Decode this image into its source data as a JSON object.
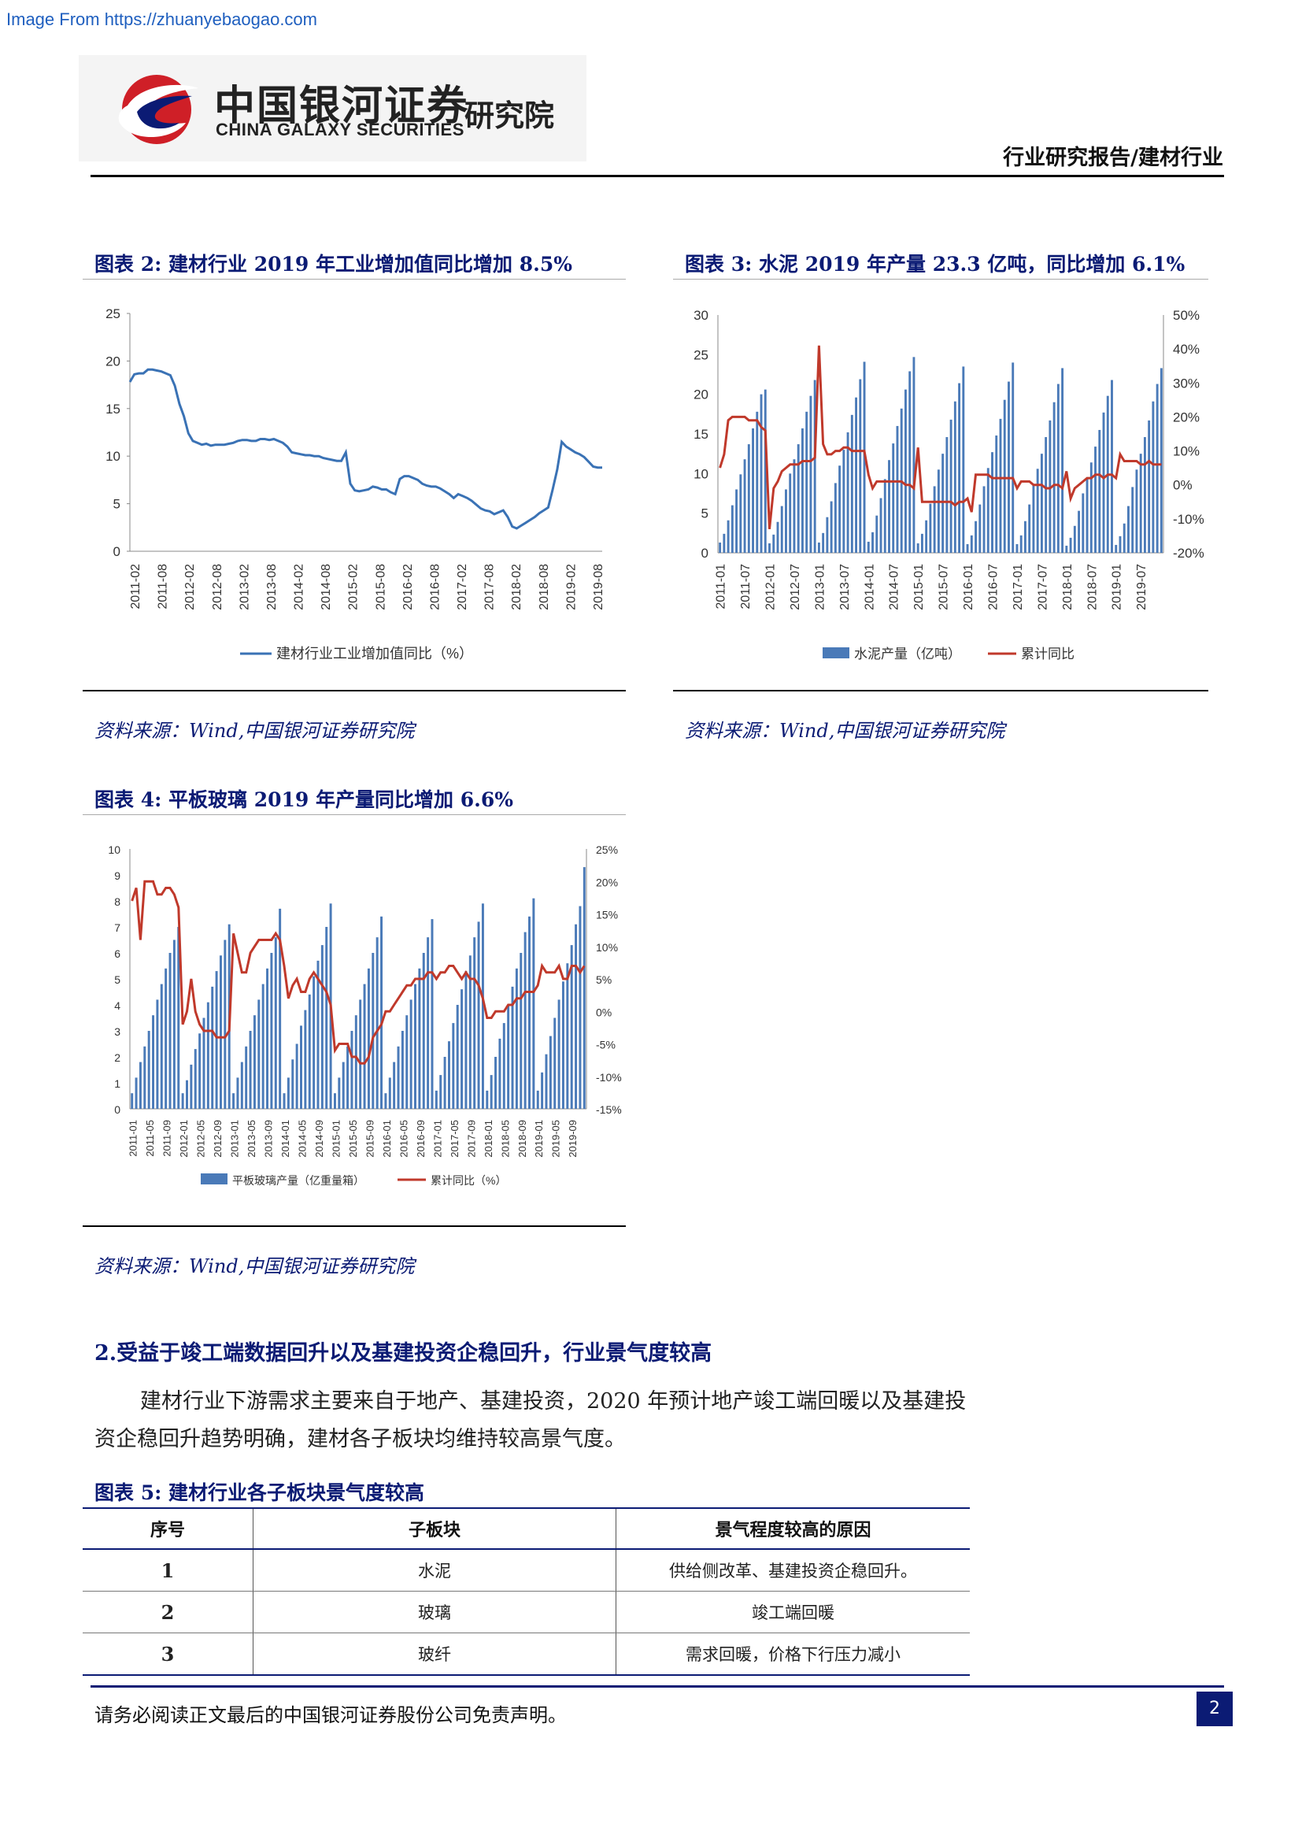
{
  "watermark": "Image From https://zhuanyebaogao.com",
  "header": {
    "brand_cn": "中国银河证券",
    "brand_sub": "研究院",
    "brand_en": "CHINA GALAXY SECURITIES",
    "report_type": "行业研究报告/建材行业"
  },
  "colors": {
    "navy": "#0b1b74",
    "bar_blue": "#4a7ab8",
    "line_red": "#c0392b",
    "line_blue": "#3a72b5"
  },
  "figures": {
    "fig2": {
      "title": "图表 2:  建材行业 2019 年工业增加值同比增加 8.5%",
      "source": "资料来源：Wind,中国银河证券研究院"
    },
    "fig3": {
      "title": "图表 3:  水泥 2019 年产量 23.3 亿吨，同比增加 6.1%",
      "source": "资料来源：Wind,中国银河证券研究院"
    },
    "fig4": {
      "title": "图表 4:  平板玻璃 2019 年产量同比增加 6.6%",
      "source": "资料来源：Wind,中国银河证券研究院"
    }
  },
  "chart_data": [
    {
      "type": "line",
      "legend": "建材行业工业增加值同比（%）",
      "ylim": [
        0,
        25
      ],
      "yticks": [
        "0",
        "5",
        "10",
        "15",
        "20",
        "25"
      ],
      "xticks": [
        "2011-02",
        "2011-08",
        "2012-02",
        "2012-08",
        "2013-02",
        "2013-08",
        "2014-02",
        "2014-08",
        "2015-02",
        "2015-08",
        "2016-02",
        "2016-08",
        "2017-02",
        "2017-08",
        "2018-02",
        "2018-08",
        "2019-02",
        "2019-08"
      ],
      "values": [
        17.8,
        18.6,
        18.7,
        18.7,
        19.1,
        19.1,
        19.0,
        18.9,
        18.7,
        18.5,
        17.4,
        15.5,
        14.2,
        12.4,
        11.6,
        11.4,
        11.2,
        11.3,
        11.1,
        11.2,
        11.2,
        11.2,
        11.3,
        11.4,
        11.6,
        11.7,
        11.7,
        11.6,
        11.6,
        11.8,
        11.8,
        11.7,
        11.8,
        11.6,
        11.4,
        11.0,
        10.4,
        10.3,
        10.2,
        10.1,
        10.1,
        10.0,
        10.0,
        9.8,
        9.7,
        9.6,
        9.5,
        9.5,
        10.4,
        7.1,
        6.4,
        6.3,
        6.4,
        6.5,
        6.8,
        6.7,
        6.5,
        6.5,
        6.2,
        6.0,
        7.6,
        7.9,
        7.9,
        7.7,
        7.5,
        7.1,
        6.9,
        6.8,
        6.8,
        6.6,
        6.3,
        6.0,
        5.6,
        6.0,
        5.8,
        5.6,
        5.3,
        4.9,
        4.5,
        4.3,
        4.2,
        3.9,
        4.1,
        4.3,
        3.6,
        2.6,
        2.4,
        2.7,
        3.0,
        3.3,
        3.6,
        4.0,
        4.3,
        4.6,
        6.5,
        8.6,
        11.5,
        11.0,
        10.7,
        10.4,
        10.2,
        9.9,
        9.4,
        8.9,
        8.8,
        8.8
      ]
    },
    {
      "type": "bar+line",
      "series": [
        {
          "name": "水泥产量（亿吨）",
          "type": "bar",
          "axis": "left",
          "start_month": "2011-01",
          "values": [
            1.3,
            2.4,
            4.1,
            6.0,
            8.0,
            9.9,
            11.8,
            13.7,
            15.7,
            17.8,
            20.0,
            20.6,
            1.2,
            2.3,
            3.9,
            5.9,
            8.0,
            10.0,
            11.8,
            13.7,
            15.7,
            17.8,
            19.8,
            21.8,
            1.3,
            2.5,
            4.5,
            6.5,
            8.8,
            11.0,
            13.0,
            15.2,
            17.4,
            19.6,
            21.9,
            24.1,
            1.4,
            2.6,
            4.7,
            6.9,
            9.3,
            11.7,
            13.8,
            16.0,
            18.2,
            20.6,
            22.9,
            24.7,
            1.2,
            2.4,
            4.1,
            6.2,
            8.4,
            10.5,
            12.5,
            14.6,
            16.8,
            19.1,
            21.4,
            23.5,
            1.1,
            2.2,
            4.0,
            6.1,
            8.4,
            10.7,
            12.7,
            14.8,
            16.9,
            19.3,
            21.6,
            24.0,
            1.1,
            2.2,
            4.0,
            6.1,
            8.5,
            10.6,
            12.5,
            14.6,
            16.7,
            19.0,
            21.3,
            23.3,
            0.9,
            1.9,
            3.4,
            5.3,
            7.5,
            9.5,
            11.4,
            13.4,
            15.5,
            17.7,
            19.8,
            21.8,
            1.0,
            2.1,
            3.7,
            5.9,
            8.3,
            10.5,
            12.5,
            14.6,
            16.7,
            19.1,
            21.3,
            23.3
          ]
        },
        {
          "name": "累计同比",
          "type": "line",
          "axis": "right",
          "start_month": "2011-01",
          "values": [
            5,
            9,
            19,
            20,
            20,
            20,
            20,
            19,
            19,
            19,
            17,
            16,
            -13,
            -1,
            1,
            4,
            5,
            6,
            6,
            6,
            7,
            7,
            7,
            8,
            41,
            12,
            9,
            9,
            10,
            10,
            11,
            11,
            10,
            10,
            10,
            10,
            3,
            -1,
            1,
            1,
            1,
            1,
            1,
            1,
            1,
            0,
            0,
            -1,
            11,
            -5,
            -5,
            -5,
            -5,
            -5,
            -5,
            -5,
            -5,
            -6,
            -5,
            -5,
            -4,
            -8,
            3,
            3,
            3,
            3,
            2,
            2,
            2,
            2,
            2,
            2,
            -1,
            1,
            1,
            1,
            0,
            0,
            0,
            -1,
            -1,
            0,
            0,
            -1,
            4,
            -4,
            -1,
            0,
            1,
            2,
            2,
            3,
            3,
            2,
            3,
            3,
            2,
            9,
            7,
            7,
            7,
            7,
            6,
            6,
            7,
            6,
            6,
            6
          ]
        }
      ],
      "ylim_left": [
        0,
        30
      ],
      "yticks_left": [
        "0",
        "5",
        "10",
        "15",
        "20",
        "25",
        "30"
      ],
      "ylim_right": [
        -20,
        50
      ],
      "yticks_right": [
        "-20%",
        "-10%",
        "0%",
        "10%",
        "20%",
        "30%",
        "40%",
        "50%"
      ],
      "xticks": [
        "2011-01",
        "2011-07",
        "2012-01",
        "2012-07",
        "2013-01",
        "2013-07",
        "2014-01",
        "2014-07",
        "2015-01",
        "2015-07",
        "2016-01",
        "2016-07",
        "2017-01",
        "2017-07",
        "2018-01",
        "2018-07",
        "2019-01",
        "2019-07"
      ]
    },
    {
      "type": "bar+line",
      "series": [
        {
          "name": "平板玻璃产量（亿重量箱）",
          "type": "bar",
          "axis": "left",
          "start_month": "2011-01",
          "values": [
            0.6,
            1.2,
            1.8,
            2.4,
            3.0,
            3.6,
            4.2,
            4.8,
            5.4,
            6.0,
            6.5,
            7.0,
            0.6,
            1.1,
            1.7,
            2.3,
            2.9,
            3.5,
            4.1,
            4.7,
            5.3,
            5.9,
            6.5,
            7.1,
            0.6,
            1.2,
            1.8,
            2.4,
            3.0,
            3.6,
            4.2,
            4.8,
            5.4,
            6.0,
            6.6,
            7.7,
            0.6,
            1.2,
            1.9,
            2.5,
            3.2,
            3.8,
            4.4,
            5.1,
            5.7,
            6.3,
            7.0,
            7.9,
            0.6,
            1.2,
            1.8,
            2.4,
            3.0,
            3.6,
            4.2,
            4.8,
            5.4,
            6.0,
            6.6,
            7.4,
            0.6,
            1.2,
            1.8,
            2.4,
            3.0,
            3.6,
            4.2,
            4.8,
            5.4,
            6.0,
            6.6,
            7.3,
            0.7,
            1.3,
            2.0,
            2.6,
            3.3,
            4.0,
            4.6,
            5.3,
            5.9,
            6.6,
            7.2,
            7.9,
            0.7,
            1.3,
            2.0,
            2.7,
            3.3,
            4.0,
            4.7,
            5.4,
            6.0,
            6.8,
            7.4,
            8.1,
            0.7,
            1.4,
            2.1,
            2.8,
            3.5,
            4.2,
            4.9,
            5.6,
            6.3,
            7.1,
            7.8,
            9.3
          ]
        },
        {
          "name": "累计同比（%）",
          "type": "line",
          "axis": "right",
          "start_month": "2011-01",
          "values": [
            17,
            19,
            11,
            20,
            20,
            20,
            18,
            18,
            19,
            19,
            18,
            16,
            -2,
            0,
            5,
            0,
            -2,
            -3,
            -3,
            -3,
            -4,
            -4,
            -4,
            -3,
            12,
            9,
            6,
            6,
            9,
            10,
            11,
            11,
            11,
            11,
            12,
            11,
            7,
            2,
            4,
            5,
            3,
            3,
            5,
            6,
            5,
            4,
            3,
            1,
            -6,
            -5,
            -5,
            -5,
            -7,
            -7,
            -8,
            -8,
            -7,
            -4,
            -3,
            -2,
            0,
            0,
            1,
            2,
            3,
            4,
            4,
            5,
            5,
            5,
            6,
            6,
            5,
            6,
            6,
            7,
            7,
            6,
            5,
            6,
            5,
            5,
            4,
            2,
            -1,
            -1,
            0,
            0,
            0,
            1,
            1,
            2,
            2,
            3,
            3,
            3,
            4,
            7,
            6,
            6,
            6,
            7,
            5,
            5,
            7,
            7,
            6,
            7
          ]
        }
      ],
      "ylim_left": [
        0,
        10
      ],
      "yticks_left": [
        "0",
        "1",
        "2",
        "3",
        "4",
        "5",
        "6",
        "7",
        "8",
        "9",
        "10"
      ],
      "ylim_right": [
        -15,
        25
      ],
      "yticks_right": [
        "-15%",
        "-10%",
        "-5%",
        "0%",
        "5%",
        "10%",
        "15%",
        "20%",
        "25%"
      ],
      "xticks": [
        "2011-01",
        "2011-05",
        "2011-09",
        "2012-01",
        "2012-05",
        "2012-09",
        "2013-01",
        "2013-05",
        "2013-09",
        "2014-01",
        "2014-05",
        "2014-09",
        "2015-01",
        "2015-05",
        "2015-09",
        "2016-01",
        "2016-05",
        "2016-09",
        "2017-01",
        "2017-05",
        "2017-09",
        "2018-01",
        "2018-05",
        "2018-09",
        "2019-01",
        "2019-05",
        "2019-09"
      ]
    }
  ],
  "section2": {
    "title": "2.受益于竣工端数据回升以及基建投资企稳回升，行业景气度较高",
    "para_line1": "建材行业下游需求主要来自于地产、基建投资，2020 年预计地产竣工端回暖以及基建投",
    "para_line2": "资企稳回升趋势明确，建材各子板块均维持较高景气度。"
  },
  "table5": {
    "title": "图表 5:  建材行业各子板块景气度较高",
    "headers": [
      "序号",
      "子板块",
      "景气程度较高的原因"
    ],
    "rows": [
      [
        "1",
        "水泥",
        "供给侧改革、基建投资企稳回升。"
      ],
      [
        "2",
        "玻璃",
        "竣工端回暖"
      ],
      [
        "3",
        "玻纤",
        "需求回暖，价格下行压力减小"
      ]
    ]
  },
  "footer": {
    "disclaimer": "请务必阅读正文最后的中国银河证券股份公司免责声明。",
    "page": "2"
  }
}
